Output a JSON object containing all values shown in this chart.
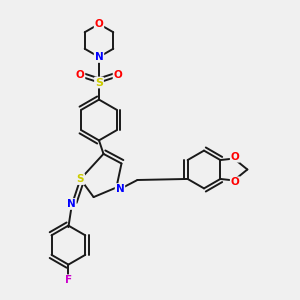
{
  "background_color": "#f0f0f0",
  "bond_color": "#1a1a1a",
  "atom_colors": {
    "N": "#0000ff",
    "O": "#ff0000",
    "S_sulfonyl": "#cccc00",
    "S_thiazole": "#cccc00",
    "F": "#cc00cc"
  },
  "lw": 1.4,
  "fontsize": 7.5
}
